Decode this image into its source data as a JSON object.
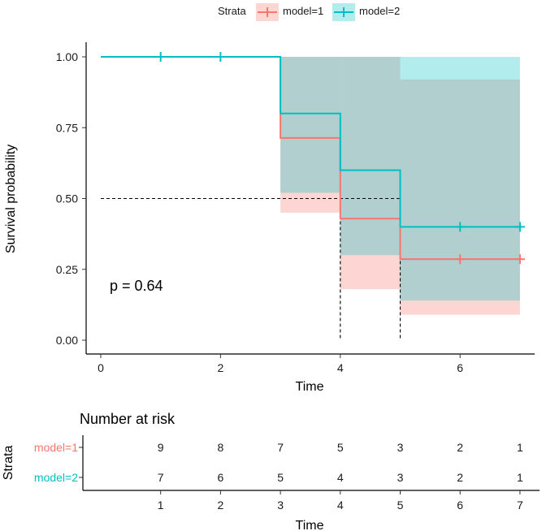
{
  "colors": {
    "model1": "#F8766D",
    "model2": "#00BFC4",
    "axis": "#000000",
    "text": "#1a1a1a"
  },
  "chart_data": [
    {
      "type": "line",
      "subtype": "kaplan-meier survival curve with confidence bands",
      "xlabel": "Time",
      "ylabel": "Survival probability",
      "xlim": [
        0,
        7
      ],
      "ylim": [
        0,
        1
      ],
      "xticks": [
        "0",
        "2",
        "4",
        "6"
      ],
      "yticks": [
        "0.00",
        "0.25",
        "0.50",
        "0.75",
        "1.00"
      ],
      "legend": {
        "title": "Strata",
        "placement": "top",
        "entries": [
          "model=1",
          "model=2"
        ]
      },
      "annotation": "p = 0.64",
      "median_line": {
        "y": 0.5,
        "x_values": [
          4,
          5
        ]
      },
      "series": [
        {
          "name": "model=1",
          "color": "#F8766D",
          "steps": [
            [
              0,
              1.0
            ],
            [
              3,
              0.714
            ],
            [
              4,
              0.429
            ],
            [
              5,
              0.286
            ],
            [
              7,
              0.286
            ]
          ],
          "ci": [
            {
              "x0": 3,
              "x1": 4,
              "lower": 0.45,
              "upper": 1.0
            },
            {
              "x0": 4,
              "x1": 5,
              "lower": 0.18,
              "upper": 1.0
            },
            {
              "x0": 5,
              "x1": 7,
              "lower": 0.09,
              "upper": 0.92
            }
          ],
          "censor_x": [
            6.0,
            7.0
          ]
        },
        {
          "name": "model=2",
          "color": "#00BFC4",
          "steps": [
            [
              0,
              1.0
            ],
            [
              3,
              0.8
            ],
            [
              4,
              0.6
            ],
            [
              5,
              0.4
            ],
            [
              7,
              0.4
            ]
          ],
          "ci": [
            {
              "x0": 3,
              "x1": 4,
              "lower": 0.52,
              "upper": 1.0
            },
            {
              "x0": 4,
              "x1": 5,
              "lower": 0.3,
              "upper": 1.0
            },
            {
              "x0": 5,
              "x1": 7,
              "lower": 0.14,
              "upper": 1.0
            }
          ],
          "censor_x": [
            1.0,
            2.0,
            6.0,
            7.0
          ]
        }
      ]
    },
    {
      "type": "table",
      "title": "Number at risk",
      "ylabel": "Strata",
      "xlabel": "Time",
      "xticks": [
        "1",
        "2",
        "3",
        "4",
        "5",
        "6",
        "7"
      ],
      "rows": [
        {
          "label": "model=1",
          "color": "#F8766D",
          "values": [
            "9",
            "8",
            "7",
            "5",
            "3",
            "2",
            "1"
          ]
        },
        {
          "label": "model=2",
          "color": "#00BFC4",
          "values": [
            "7",
            "6",
            "5",
            "4",
            "3",
            "2",
            "1"
          ]
        }
      ]
    }
  ]
}
